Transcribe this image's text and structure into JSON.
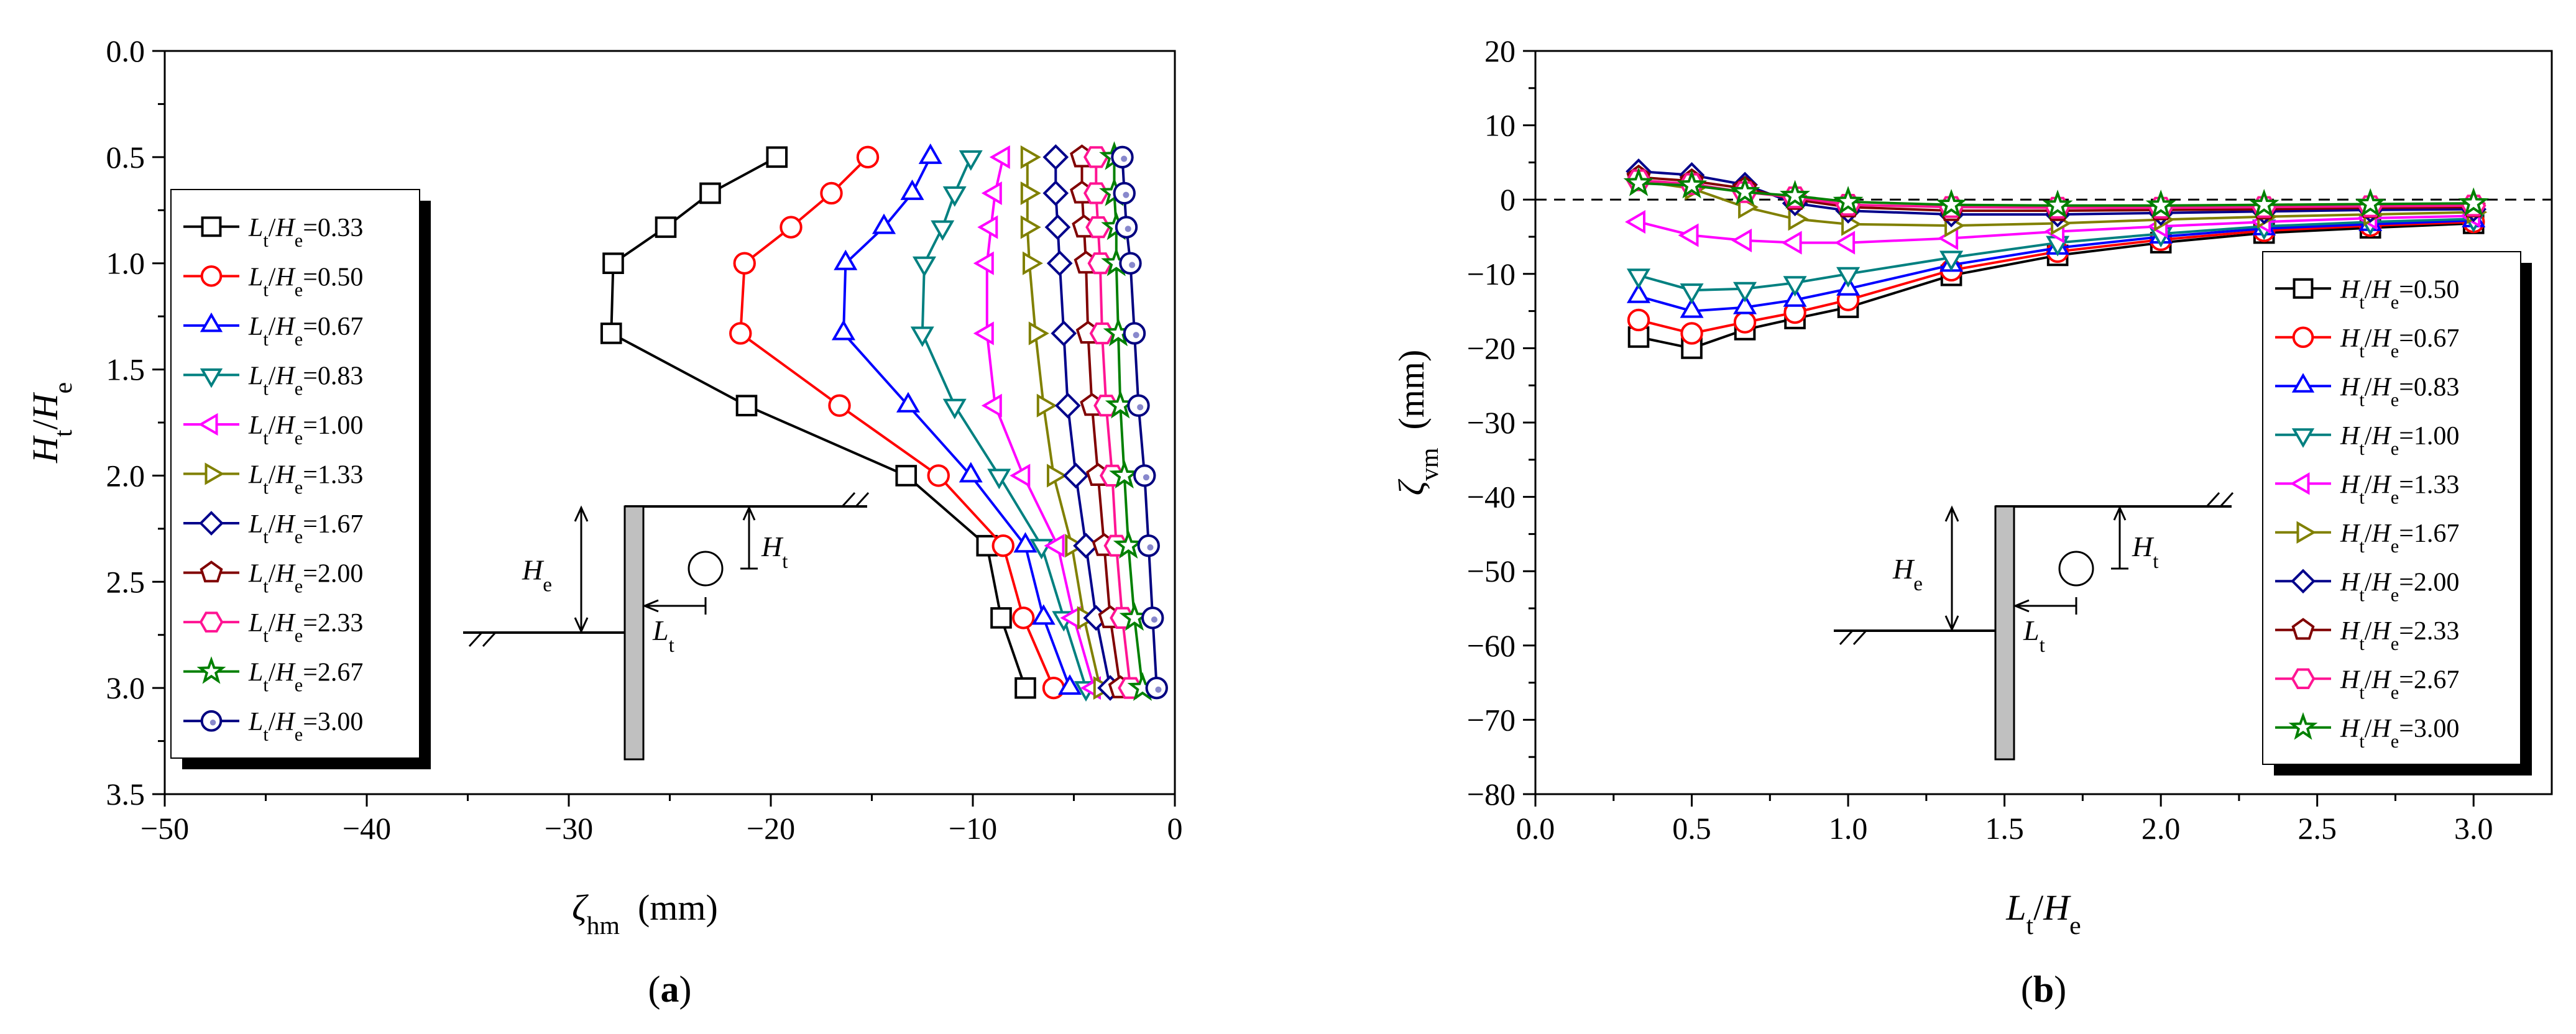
{
  "chart_data": [
    {
      "type": "line",
      "panel_label": "(a)",
      "ylabel_main": "H",
      "ylabel_main_sub": "t",
      "ylabel_sep": "/",
      "ylabel_den": "H",
      "ylabel_den_sub": "e",
      "xlabel_main": "ζ",
      "xlabel_sub": "hm",
      "xlabel_unit": "(mm)",
      "xlim": [
        -50,
        0
      ],
      "ylim": [
        0,
        3.5
      ],
      "y_inverted": true,
      "xticks": [
        -50,
        -40,
        -30,
        -20,
        -10,
        0
      ],
      "xtick_labels": [
        "−50",
        "−40",
        "−30",
        "−20",
        "−10",
        "0"
      ],
      "yticks": [
        0,
        0.5,
        1.0,
        1.5,
        2.0,
        2.5,
        3.0,
        3.5
      ],
      "ytick_labels": [
        "0.0",
        "0.5",
        "1.0",
        "1.5",
        "2.0",
        "2.5",
        "3.0",
        "3.5"
      ],
      "legend_position": "left",
      "legend_var": "L",
      "legend_var_sub": "t",
      "legend_den": "H",
      "legend_den_sub": "e",
      "y": [
        0.5,
        0.67,
        0.83,
        1.0,
        1.33,
        1.67,
        2.0,
        2.33,
        2.67,
        3.0
      ],
      "series": [
        {
          "name": "=0.33",
          "color": "#000000",
          "marker": "square",
          "values": [
            -19.7,
            -23.0,
            -25.2,
            -27.8,
            -27.9,
            -21.2,
            -13.3,
            -9.3,
            -8.6,
            -7.4
          ]
        },
        {
          "name": "=0.50",
          "color": "#ff0000",
          "marker": "circle",
          "values": [
            -15.2,
            -17.0,
            -19.0,
            -21.3,
            -21.5,
            -16.6,
            -11.7,
            -8.5,
            -7.5,
            -6.0
          ]
        },
        {
          "name": "=0.67",
          "color": "#0000ff",
          "marker": "triangle-up",
          "values": [
            -12.1,
            -13.0,
            -14.4,
            -16.3,
            -16.4,
            -13.2,
            -10.1,
            -7.4,
            -6.5,
            -5.2
          ]
        },
        {
          "name": "=0.83",
          "color": "#008080",
          "marker": "triangle-down",
          "values": [
            -10.1,
            -10.9,
            -11.5,
            -12.4,
            -12.5,
            -10.9,
            -8.7,
            -6.6,
            -5.5,
            -4.4
          ]
        },
        {
          "name": "=1.00",
          "color": "#ff00ff",
          "marker": "triangle-left",
          "values": [
            -8.5,
            -8.9,
            -9.1,
            -9.3,
            -9.3,
            -8.9,
            -7.5,
            -5.8,
            -5.0,
            -4.0
          ]
        },
        {
          "name": "=1.33",
          "color": "#808000",
          "marker": "triangle-right",
          "values": [
            -7.3,
            -7.3,
            -7.3,
            -7.2,
            -6.9,
            -6.5,
            -6.0,
            -5.1,
            -4.5,
            -3.7
          ]
        },
        {
          "name": "=1.67",
          "color": "#00008b",
          "marker": "diamond",
          "values": [
            -5.9,
            -5.9,
            -5.8,
            -5.7,
            -5.5,
            -5.3,
            -4.9,
            -4.4,
            -3.9,
            -3.2
          ]
        },
        {
          "name": "=2.00",
          "color": "#800000",
          "marker": "pentagon",
          "values": [
            -4.6,
            -4.6,
            -4.5,
            -4.4,
            -4.3,
            -4.1,
            -3.8,
            -3.5,
            -3.2,
            -2.7
          ]
        },
        {
          "name": "=2.33",
          "color": "#ff1493",
          "marker": "hexagon",
          "values": [
            -3.9,
            -3.9,
            -3.8,
            -3.7,
            -3.6,
            -3.4,
            -3.1,
            -2.9,
            -2.6,
            -2.2
          ]
        },
        {
          "name": "=2.67",
          "color": "#008000",
          "marker": "star",
          "values": [
            -3.0,
            -3.0,
            -2.9,
            -2.9,
            -2.8,
            -2.7,
            -2.5,
            -2.3,
            -2.0,
            -1.6
          ]
        },
        {
          "name": "=3.00",
          "color": "#000080",
          "marker": "circle-dot",
          "values": [
            -2.6,
            -2.5,
            -2.4,
            -2.2,
            -2.0,
            -1.8,
            -1.5,
            -1.3,
            -1.1,
            -0.9
          ]
        }
      ],
      "inset": {
        "he_main": "H",
        "he_sub": "e",
        "ht_main": "H",
        "ht_sub": "t",
        "lt_main": "L",
        "lt_sub": "t"
      }
    },
    {
      "type": "line",
      "panel_label": "(b)",
      "xlabel_main": "L",
      "xlabel_main_sub": "t",
      "xlabel_sep": "/",
      "xlabel_den": "H",
      "xlabel_den_sub": "e",
      "ylabel_main": "ζ",
      "ylabel_sub": "vm",
      "ylabel_unit": "(mm)",
      "xlim": [
        0,
        3.25
      ],
      "ylim": [
        -80,
        20
      ],
      "xticks": [
        0,
        0.5,
        1.0,
        1.5,
        2.0,
        2.5,
        3.0
      ],
      "xtick_labels": [
        "0.0",
        "0.5",
        "1.0",
        "1.5",
        "2.0",
        "2.5",
        "3.0"
      ],
      "yticks": [
        -80,
        -70,
        -60,
        -50,
        -40,
        -30,
        -20,
        -10,
        0,
        10,
        20
      ],
      "ytick_labels": [
        "−80",
        "−70",
        "−60",
        "−50",
        "−40",
        "−30",
        "−20",
        "−10",
        "0",
        "10",
        "20"
      ],
      "reference_line_y": 0,
      "legend_position": "right",
      "legend_var": "H",
      "legend_var_sub": "t",
      "legend_den": "H",
      "legend_den_sub": "e",
      "x": [
        0.33,
        0.5,
        0.67,
        0.83,
        1.0,
        1.33,
        1.67,
        2.0,
        2.33,
        2.67,
        3.0
      ],
      "series": [
        {
          "name": "=0.50",
          "color": "#000000",
          "marker": "square",
          "values": [
            -18.5,
            -20.0,
            -17.5,
            -16.0,
            -14.5,
            -10.2,
            -7.5,
            -5.8,
            -4.5,
            -3.8,
            -3.2
          ]
        },
        {
          "name": "=0.67",
          "color": "#ff0000",
          "marker": "circle",
          "values": [
            -16.2,
            -18.0,
            -16.5,
            -15.2,
            -13.5,
            -9.5,
            -7.0,
            -5.4,
            -4.2,
            -3.5,
            -3.0
          ]
        },
        {
          "name": "=0.83",
          "color": "#0000ff",
          "marker": "triangle-up",
          "values": [
            -13.0,
            -15.0,
            -14.5,
            -13.5,
            -12.0,
            -8.8,
            -6.5,
            -5.0,
            -3.9,
            -3.3,
            -2.8
          ]
        },
        {
          "name": "=1.00",
          "color": "#008080",
          "marker": "triangle-down",
          "values": [
            -10.2,
            -12.2,
            -12.0,
            -11.2,
            -10.0,
            -7.8,
            -5.8,
            -4.6,
            -3.6,
            -3.0,
            -2.6
          ]
        },
        {
          "name": "=1.33",
          "color": "#ff00ff",
          "marker": "triangle-left",
          "values": [
            -3.0,
            -4.8,
            -5.5,
            -5.8,
            -5.8,
            -5.2,
            -4.3,
            -3.6,
            -3.0,
            -2.5,
            -2.2
          ]
        },
        {
          "name": "=1.67",
          "color": "#808000",
          "marker": "triangle-right",
          "values": [
            2.5,
            1.5,
            -1.0,
            -2.6,
            -3.3,
            -3.5,
            -3.2,
            -2.7,
            -2.3,
            -2.0,
            -1.7
          ]
        },
        {
          "name": "=2.00",
          "color": "#00008b",
          "marker": "diamond",
          "values": [
            3.8,
            3.3,
            2.0,
            -0.5,
            -1.5,
            -2.0,
            -2.0,
            -1.8,
            -1.6,
            -1.4,
            -1.3
          ]
        },
        {
          "name": "=2.33",
          "color": "#800000",
          "marker": "pentagon",
          "values": [
            3.0,
            2.5,
            1.5,
            0.0,
            -1.0,
            -1.5,
            -1.5,
            -1.4,
            -1.3,
            -1.1,
            -1.0
          ]
        },
        {
          "name": "=2.67",
          "color": "#ff1493",
          "marker": "hexagon",
          "values": [
            2.6,
            2.1,
            1.0,
            0.3,
            -0.7,
            -1.0,
            -1.1,
            -1.1,
            -1.0,
            -0.9,
            -0.8
          ]
        },
        {
          "name": "=3.00",
          "color": "#008000",
          "marker": "star",
          "values": [
            2.2,
            1.9,
            1.0,
            0.5,
            -0.3,
            -0.7,
            -0.8,
            -0.8,
            -0.7,
            -0.6,
            -0.5
          ]
        }
      ],
      "inset": {
        "he_main": "H",
        "he_sub": "e",
        "ht_main": "H",
        "ht_sub": "t",
        "lt_main": "L",
        "lt_sub": "t"
      }
    }
  ]
}
